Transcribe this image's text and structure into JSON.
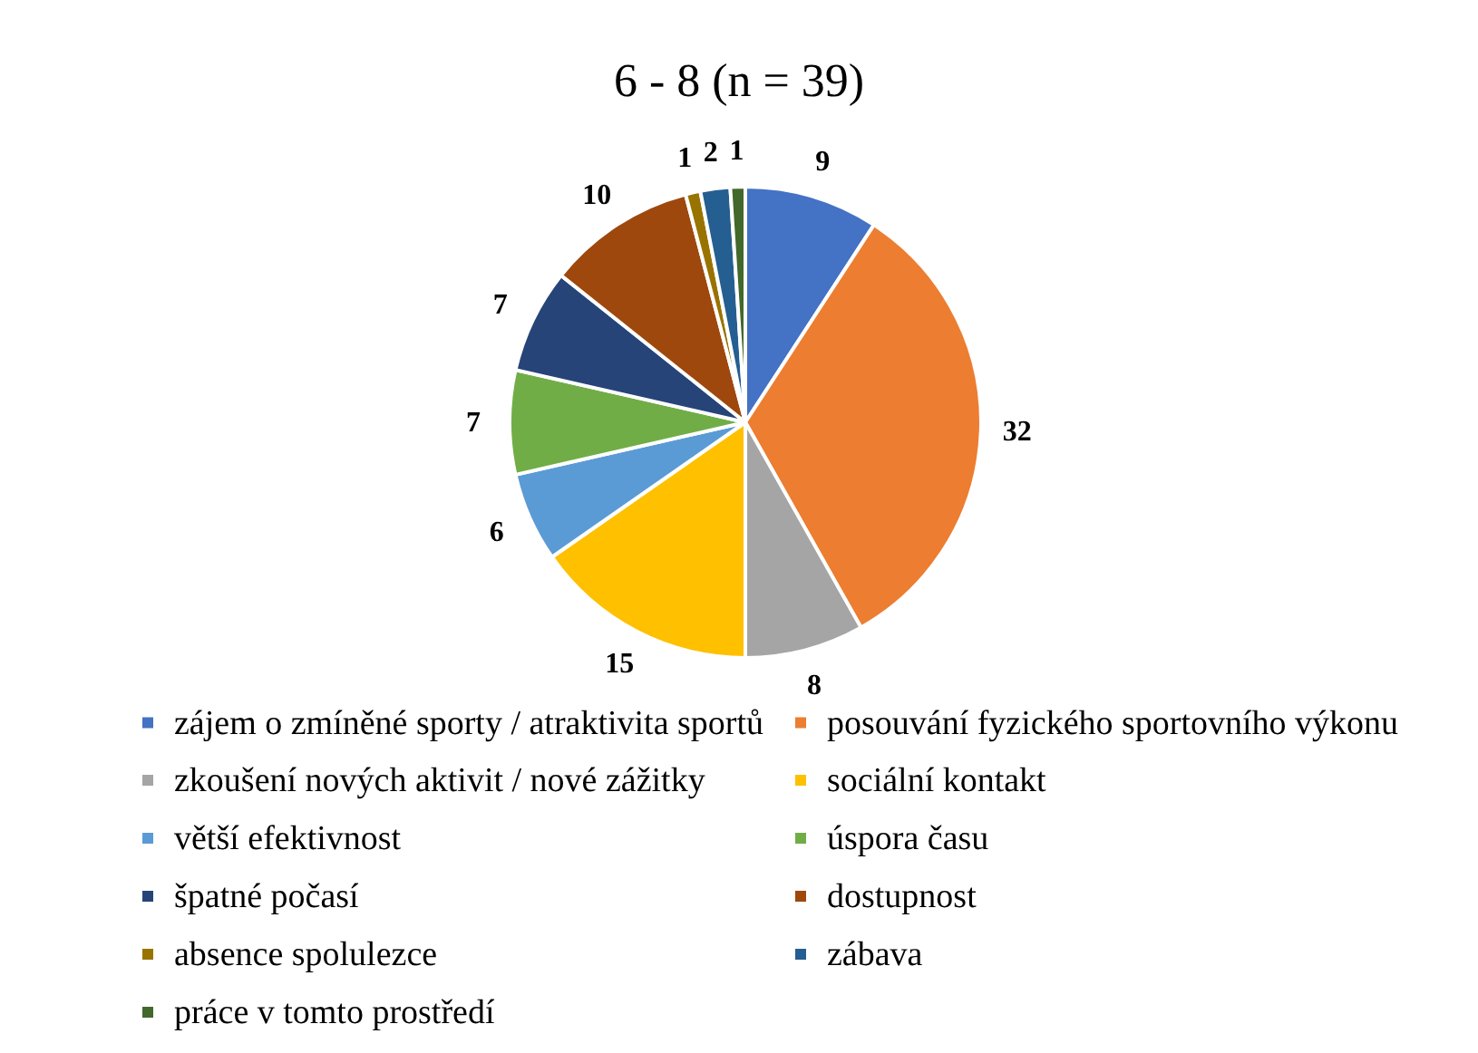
{
  "chart_data": {
    "type": "pie",
    "title": "6 - 8 (n = 39)",
    "categories": [
      "zájem o zmíněné sporty / atraktivita sportů",
      "posouvání fyzického sportovního výkonu",
      "zkoušení nových aktivit / nové zážitky",
      "sociální kontakt",
      "větší efektivnost",
      "úspora času",
      "špatné počasí",
      "dostupnost",
      "absence spolulezce",
      "zábava",
      "práce v tomto prostředí"
    ],
    "values": [
      9,
      32,
      8,
      15,
      6,
      7,
      7,
      10,
      1,
      2,
      1
    ],
    "colors": [
      "#4472c4",
      "#ed7d31",
      "#a5a5a5",
      "#ffc000",
      "#5b9bd5",
      "#70ad47",
      "#264478",
      "#9e480e",
      "#997300",
      "#255e91",
      "#43682b"
    ],
    "data_labels": true,
    "legend": "bottom"
  }
}
